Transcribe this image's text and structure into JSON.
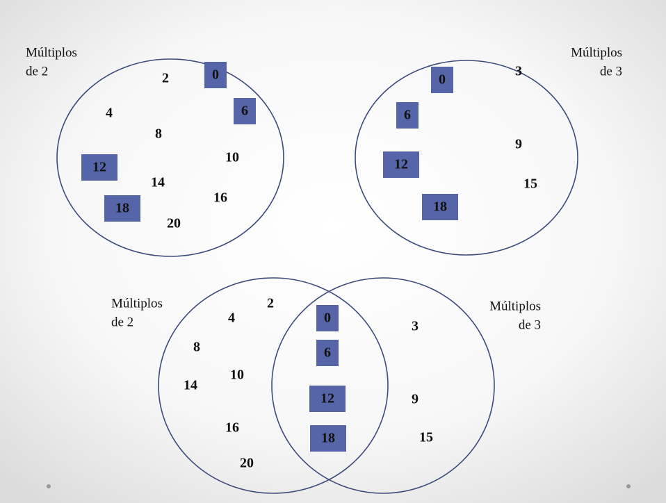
{
  "sets": [
    {
      "label": [
        "Múltiplos",
        "de 2"
      ],
      "items": [
        {
          "value": 2,
          "highlighted": false
        },
        {
          "value": 0,
          "highlighted": true
        },
        {
          "value": 4,
          "highlighted": false
        },
        {
          "value": 6,
          "highlighted": true
        },
        {
          "value": 8,
          "highlighted": false
        },
        {
          "value": 10,
          "highlighted": false
        },
        {
          "value": 12,
          "highlighted": true
        },
        {
          "value": 14,
          "highlighted": false
        },
        {
          "value": 16,
          "highlighted": false
        },
        {
          "value": 18,
          "highlighted": true
        },
        {
          "value": 20,
          "highlighted": false
        }
      ]
    },
    {
      "label": [
        "Múltiplos",
        "de 3"
      ],
      "items": [
        {
          "value": 0,
          "highlighted": true
        },
        {
          "value": 3,
          "highlighted": false
        },
        {
          "value": 6,
          "highlighted": true
        },
        {
          "value": 9,
          "highlighted": false
        },
        {
          "value": 12,
          "highlighted": true
        },
        {
          "value": 15,
          "highlighted": false
        },
        {
          "value": 18,
          "highlighted": true
        }
      ]
    }
  ],
  "venn": {
    "left_label": [
      "Múltiplos",
      "de 2"
    ],
    "right_label": [
      "Múltiplos",
      "de 3"
    ],
    "left_only": [
      {
        "value": 2,
        "highlighted": false
      },
      {
        "value": 4,
        "highlighted": false
      },
      {
        "value": 8,
        "highlighted": false
      },
      {
        "value": 10,
        "highlighted": false
      },
      {
        "value": 14,
        "highlighted": false
      },
      {
        "value": 16,
        "highlighted": false
      },
      {
        "value": 20,
        "highlighted": false
      }
    ],
    "intersection": [
      {
        "value": 0,
        "highlighted": true
      },
      {
        "value": 6,
        "highlighted": true
      },
      {
        "value": 12,
        "highlighted": true
      },
      {
        "value": 18,
        "highlighted": true
      }
    ],
    "right_only": [
      {
        "value": 3,
        "highlighted": false
      },
      {
        "value": 9,
        "highlighted": false
      },
      {
        "value": 15,
        "highlighted": false
      }
    ]
  }
}
